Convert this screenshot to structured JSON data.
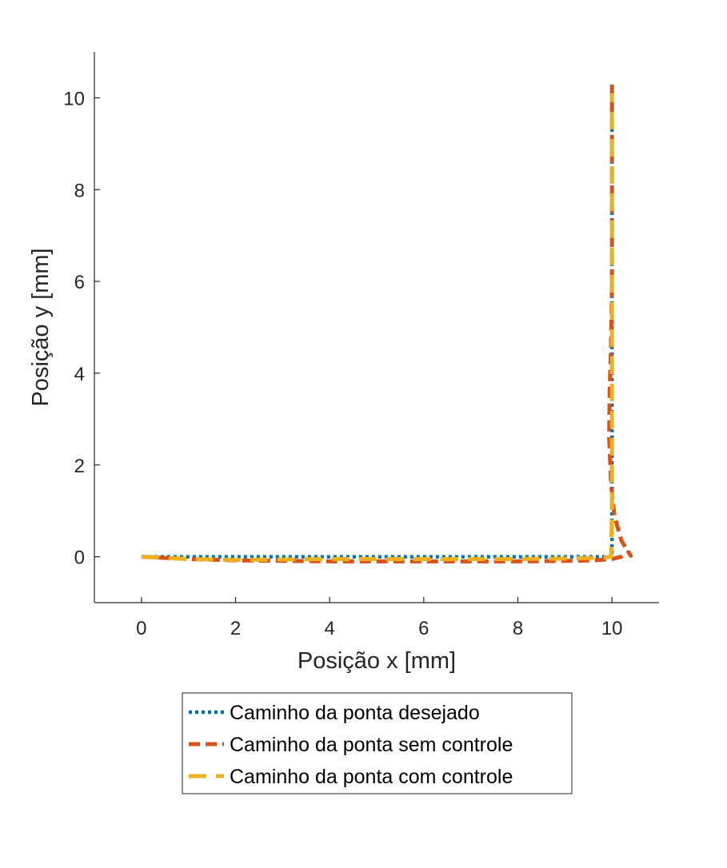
{
  "chart_data": {
    "type": "line",
    "title": "",
    "xlabel": "Posição x [mm]",
    "ylabel": "Posição y [mm]",
    "xlim": [
      -1,
      11
    ],
    "ylim": [
      -1,
      11
    ],
    "xticks": [
      0,
      2,
      4,
      6,
      8,
      10
    ],
    "yticks": [
      0,
      2,
      4,
      6,
      8,
      10
    ],
    "grid": false,
    "legend_position": "bottom-outside",
    "series": [
      {
        "name": "Caminho da ponta desejado",
        "color": "#0072BD",
        "style": "dotted",
        "x": [
          0,
          10,
          10
        ],
        "y": [
          0,
          0,
          10
        ]
      },
      {
        "name": "Caminho da ponta sem controle",
        "color": "#D95319",
        "style": "dashed",
        "x": [
          0,
          1,
          2,
          3,
          4,
          5,
          6,
          7,
          8,
          9,
          9.6,
          10,
          10.2,
          10.35,
          10.4,
          10.2,
          10.05,
          9.98,
          9.94,
          9.95,
          9.98,
          10,
          10,
          10
        ],
        "y": [
          0,
          -0.05,
          -0.08,
          -0.09,
          -0.1,
          -0.1,
          -0.1,
          -0.1,
          -0.1,
          -0.09,
          -0.08,
          -0.05,
          0,
          0.1,
          0.02,
          0.35,
          0.9,
          1.6,
          2.6,
          3.6,
          4.6,
          6,
          8,
          10.4
        ]
      },
      {
        "name": "Caminho da ponta com controle",
        "color": "#EDB120",
        "style": "longdash",
        "x": [
          0,
          1,
          2,
          3,
          4,
          5,
          6,
          7,
          8,
          9,
          9.8,
          9.98,
          10,
          10,
          10,
          10
        ],
        "y": [
          0,
          -0.05,
          -0.07,
          -0.06,
          -0.05,
          -0.05,
          -0.05,
          -0.05,
          -0.05,
          -0.04,
          -0.02,
          0,
          1,
          4,
          8,
          10.1
        ]
      }
    ]
  }
}
